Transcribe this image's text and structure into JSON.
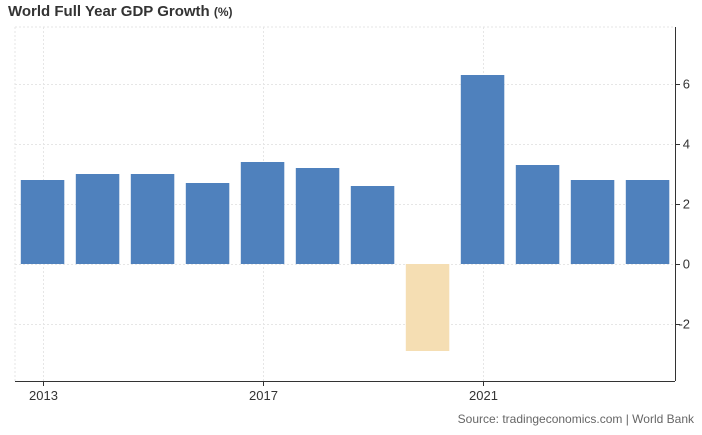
{
  "header": {
    "title": "World Full Year GDP Growth",
    "unit": "(%)"
  },
  "source": "Source: tradingeconomics.com | World Bank",
  "colors": {
    "positive": "#4f81bd",
    "negative": "#f5deb3",
    "grid": "#e6e6e6",
    "axis": "#333333"
  },
  "chart_data": {
    "type": "bar",
    "title": "World Full Year GDP Growth (%)",
    "xlabel": "",
    "ylabel": "",
    "categories": [
      "2013",
      "2014",
      "2015",
      "2016",
      "2017",
      "2018",
      "2019",
      "2020",
      "2021",
      "2022",
      "2023",
      "2024"
    ],
    "x_tick_labels": [
      "2013",
      "2017",
      "2021"
    ],
    "values": [
      2.8,
      3.0,
      3.0,
      2.7,
      3.4,
      3.2,
      2.6,
      -2.9,
      6.3,
      3.3,
      2.8,
      2.8
    ],
    "yticks": [
      -2,
      0,
      2,
      4,
      6
    ],
    "ylim": [
      -3.9,
      7.9
    ],
    "grid": true,
    "y_axis_side": "right"
  }
}
